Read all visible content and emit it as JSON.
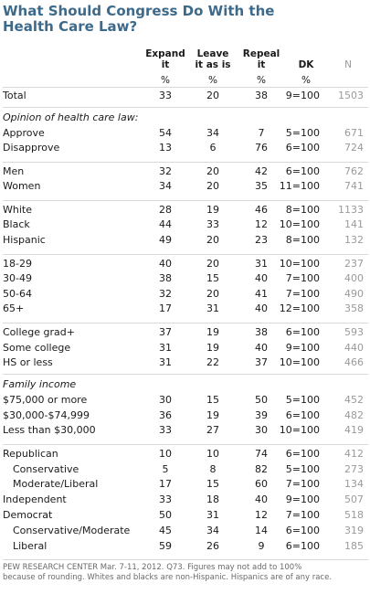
{
  "title": [
    "What Should Congress Do With the",
    "Health Care Law?"
  ],
  "columns": [
    {
      "lines": [
        "Expand",
        "it"
      ]
    },
    {
      "lines": [
        "Leave",
        "it as is"
      ]
    },
    {
      "lines": [
        "Repeal",
        "it"
      ]
    },
    {
      "lines": [
        "DK"
      ]
    },
    {
      "lines": [
        "N"
      ]
    }
  ],
  "pct_symbols": [
    "%",
    "%",
    "%",
    "%"
  ],
  "rows": [
    {
      "label": "Total",
      "v": [
        "33",
        "20",
        "38",
        "9=100"
      ],
      "n": "1503"
    },
    {
      "label": "Opinion of health care law:",
      "section": true
    },
    {
      "label": "Approve",
      "v": [
        "54",
        "34",
        "7",
        "5=100"
      ],
      "n": "671"
    },
    {
      "label": "Disapprove",
      "v": [
        "13",
        "6",
        "76",
        "6=100"
      ],
      "n": "724"
    },
    {
      "label": "Men",
      "v": [
        "32",
        "20",
        "42",
        "6=100"
      ],
      "n": "762"
    },
    {
      "label": "Women",
      "v": [
        "34",
        "20",
        "35",
        "11=100"
      ],
      "n": "741"
    },
    {
      "label": "White",
      "v": [
        "28",
        "19",
        "46",
        "8=100"
      ],
      "n": "1133"
    },
    {
      "label": "Black",
      "v": [
        "44",
        "33",
        "12",
        "10=100"
      ],
      "n": "141"
    },
    {
      "label": "Hispanic",
      "v": [
        "49",
        "20",
        "23",
        "8=100"
      ],
      "n": "132"
    },
    {
      "label": "18-29",
      "v": [
        "40",
        "20",
        "31",
        "10=100"
      ],
      "n": "237"
    },
    {
      "label": "30-49",
      "v": [
        "38",
        "15",
        "40",
        "7=100"
      ],
      "n": "400"
    },
    {
      "label": "50-64",
      "v": [
        "32",
        "20",
        "41",
        "7=100"
      ],
      "n": "490"
    },
    {
      "label": "65+",
      "v": [
        "17",
        "31",
        "40",
        "12=100"
      ],
      "n": "358"
    },
    {
      "label": "College grad+",
      "v": [
        "37",
        "19",
        "38",
        "6=100"
      ],
      "n": "593"
    },
    {
      "label": "Some college",
      "v": [
        "31",
        "19",
        "40",
        "9=100"
      ],
      "n": "440"
    },
    {
      "label": "HS or less",
      "v": [
        "31",
        "22",
        "37",
        "10=100"
      ],
      "n": "466"
    },
    {
      "label": "Family income",
      "section": true
    },
    {
      "label": "$75,000 or more",
      "v": [
        "30",
        "15",
        "50",
        "5=100"
      ],
      "n": "452"
    },
    {
      "label": "$30,000-$74,999",
      "v": [
        "36",
        "19",
        "39",
        "6=100"
      ],
      "n": "482"
    },
    {
      "label": "Less than $30,000",
      "v": [
        "33",
        "27",
        "30",
        "10=100"
      ],
      "n": "419"
    },
    {
      "label": "Republican",
      "v": [
        "10",
        "10",
        "74",
        "6=100"
      ],
      "n": "412"
    },
    {
      "label": "Conservative",
      "indent": true,
      "v": [
        "5",
        "8",
        "82",
        "5=100"
      ],
      "n": "273"
    },
    {
      "label": "Moderate/Liberal",
      "indent": true,
      "v": [
        "17",
        "15",
        "60",
        "7=100"
      ],
      "n": "134"
    },
    {
      "label": "Independent",
      "v": [
        "33",
        "18",
        "40",
        "9=100"
      ],
      "n": "507"
    },
    {
      "label": "Democrat",
      "v": [
        "50",
        "31",
        "12",
        "7=100"
      ],
      "n": "518"
    },
    {
      "label": "Conservative/Moderate",
      "indent": true,
      "v": [
        "45",
        "34",
        "14",
        "6=100"
      ],
      "n": "319"
    },
    {
      "label": "Liberal",
      "indent": true,
      "v": [
        "59",
        "26",
        "9",
        "6=100"
      ],
      "n": "185"
    }
  ],
  "footnote": [
    "PEW RESEARCH CENTER Mar. 7-11, 2012. Q73. Figures may not add to 100%",
    "because of rounding. Whites and blacks are non-Hispanic. Hispanics are of any race."
  ],
  "chart_data": {
    "type": "table",
    "title": "What Should Congress Do With the Health Care Law?",
    "columns": [
      "Expand it",
      "Leave it as is",
      "Repeal it",
      "DK",
      "N"
    ],
    "unit": "%",
    "groups": [
      {
        "name": "",
        "rows": [
          {
            "label": "Total",
            "expand": 33,
            "leave": 20,
            "repeal": 38,
            "dk": 9,
            "n": 1503
          }
        ]
      },
      {
        "name": "Opinion of health care law:",
        "rows": [
          {
            "label": "Approve",
            "expand": 54,
            "leave": 34,
            "repeal": 7,
            "dk": 5,
            "n": 671
          },
          {
            "label": "Disapprove",
            "expand": 13,
            "leave": 6,
            "repeal": 76,
            "dk": 6,
            "n": 724
          }
        ]
      },
      {
        "name": "",
        "rows": [
          {
            "label": "Men",
            "expand": 32,
            "leave": 20,
            "repeal": 42,
            "dk": 6,
            "n": 762
          },
          {
            "label": "Women",
            "expand": 34,
            "leave": 20,
            "repeal": 35,
            "dk": 11,
            "n": 741
          }
        ]
      },
      {
        "name": "",
        "rows": [
          {
            "label": "White",
            "expand": 28,
            "leave": 19,
            "repeal": 46,
            "dk": 8,
            "n": 1133
          },
          {
            "label": "Black",
            "expand": 44,
            "leave": 33,
            "repeal": 12,
            "dk": 10,
            "n": 141
          },
          {
            "label": "Hispanic",
            "expand": 49,
            "leave": 20,
            "repeal": 23,
            "dk": 8,
            "n": 132
          }
        ]
      },
      {
        "name": "",
        "rows": [
          {
            "label": "18-29",
            "expand": 40,
            "leave": 20,
            "repeal": 31,
            "dk": 10,
            "n": 237
          },
          {
            "label": "30-49",
            "expand": 38,
            "leave": 15,
            "repeal": 40,
            "dk": 7,
            "n": 400
          },
          {
            "label": "50-64",
            "expand": 32,
            "leave": 20,
            "repeal": 41,
            "dk": 7,
            "n": 490
          },
          {
            "label": "65+",
            "expand": 17,
            "leave": 31,
            "repeal": 40,
            "dk": 12,
            "n": 358
          }
        ]
      },
      {
        "name": "",
        "rows": [
          {
            "label": "College grad+",
            "expand": 37,
            "leave": 19,
            "repeal": 38,
            "dk": 6,
            "n": 593
          },
          {
            "label": "Some college",
            "expand": 31,
            "leave": 19,
            "repeal": 40,
            "dk": 9,
            "n": 440
          },
          {
            "label": "HS or less",
            "expand": 31,
            "leave": 22,
            "repeal": 37,
            "dk": 10,
            "n": 466
          }
        ]
      },
      {
        "name": "Family income",
        "rows": [
          {
            "label": "$75,000 or more",
            "expand": 30,
            "leave": 15,
            "repeal": 50,
            "dk": 5,
            "n": 452
          },
          {
            "label": "$30,000-$74,999",
            "expand": 36,
            "leave": 19,
            "repeal": 39,
            "dk": 6,
            "n": 482
          },
          {
            "label": "Less than $30,000",
            "expand": 33,
            "leave": 27,
            "repeal": 30,
            "dk": 10,
            "n": 419
          }
        ]
      },
      {
        "name": "",
        "rows": [
          {
            "label": "Republican",
            "expand": 10,
            "leave": 10,
            "repeal": 74,
            "dk": 6,
            "n": 412
          },
          {
            "label": "Conservative",
            "expand": 5,
            "leave": 8,
            "repeal": 82,
            "dk": 5,
            "n": 273
          },
          {
            "label": "Moderate/Liberal",
            "expand": 17,
            "leave": 15,
            "repeal": 60,
            "dk": 7,
            "n": 134
          },
          {
            "label": "Independent",
            "expand": 33,
            "leave": 18,
            "repeal": 40,
            "dk": 9,
            "n": 507
          },
          {
            "label": "Democrat",
            "expand": 50,
            "leave": 31,
            "repeal": 12,
            "dk": 7,
            "n": 518
          },
          {
            "label": "Conservative/Moderate",
            "expand": 45,
            "leave": 34,
            "repeal": 14,
            "dk": 6,
            "n": 319
          },
          {
            "label": "Liberal",
            "expand": 59,
            "leave": 26,
            "repeal": 9,
            "dk": 6,
            "n": 185
          }
        ]
      }
    ]
  }
}
